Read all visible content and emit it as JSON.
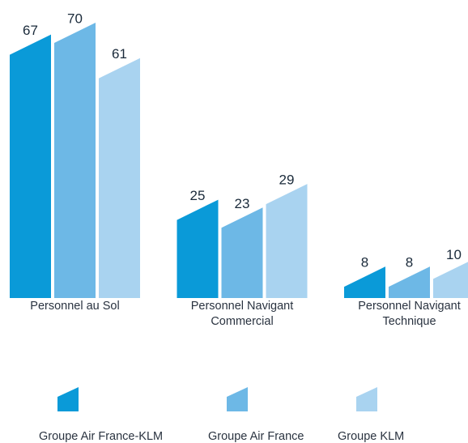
{
  "chart_data": {
    "type": "bar",
    "categories": [
      "Personnel au Sol",
      "Personnel Navigant Commercial",
      "Personnel Navigant Technique"
    ],
    "series": [
      {
        "name": "Groupe Air France-KLM",
        "color": "#0a9ad8",
        "values": [
          67,
          25,
          8
        ]
      },
      {
        "name": "Groupe Air France",
        "color": "#6db8e6",
        "values": [
          70,
          23,
          8
        ]
      },
      {
        "name": "Groupe KLM",
        "color": "#a9d3f0",
        "values": [
          61,
          29,
          10
        ]
      }
    ]
  }
}
